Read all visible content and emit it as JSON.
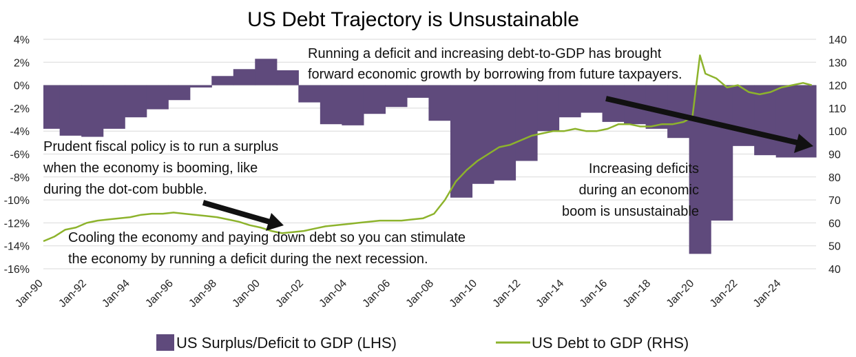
{
  "chart_data": {
    "type": "area",
    "title": "US Debt Trajectory is Unsustainable",
    "xlabel": "",
    "ylabel": "",
    "x_tick_labels": [
      "Jan-90",
      "Jan-92",
      "Jan-94",
      "Jan-96",
      "Jan-98",
      "Jan-00",
      "Jan-02",
      "Jan-04",
      "Jan-06",
      "Jan-08",
      "Jan-10",
      "Jan-12",
      "Jan-14",
      "Jan-16",
      "Jan-18",
      "Jan-20",
      "Jan-22",
      "Jan-24"
    ],
    "y_left_tick_labels": [
      "4%",
      "2%",
      "0%",
      "-2%",
      "-4%",
      "-6%",
      "-8%",
      "-10%",
      "-12%",
      "-14%",
      "-16%"
    ],
    "y_right_tick_labels": [
      "140",
      "130",
      "120",
      "110",
      "100",
      "90",
      "80",
      "70",
      "60",
      "50",
      "40"
    ],
    "y_left_lim": [
      -16,
      4
    ],
    "y_right_lim": [
      40,
      140
    ],
    "x_lim": [
      1990.0,
      2025.6
    ],
    "grid": true,
    "legend_position": "bottom",
    "colors": {
      "deficit": "#5f4a7c",
      "debt": "#8db32c",
      "grid": "#d9d9d9",
      "arrow": "#111111"
    },
    "series": [
      {
        "name": "US Surplus/Deficit to GDP (LHS)",
        "axis": "left",
        "kind": "step-area",
        "x_start": [
          1990.0,
          1990.75,
          1991.75,
          1992.75,
          1993.75,
          1994.75,
          1995.75,
          1996.75,
          1997.75,
          1998.75,
          1999.75,
          2000.75,
          2001.75,
          2002.75,
          2003.75,
          2004.75,
          2005.75,
          2006.75,
          2007.75,
          2008.75,
          2009.75,
          2010.75,
          2011.75,
          2012.75,
          2013.75,
          2014.75,
          2015.75,
          2016.75,
          2017.75,
          2018.75,
          2019.75,
          2020.75,
          2021.75,
          2022.75,
          2023.75,
          2024.75
        ],
        "values": [
          -3.8,
          -4.4,
          -4.5,
          -3.8,
          -2.8,
          -2.1,
          -1.3,
          -0.2,
          0.8,
          1.4,
          2.3,
          1.3,
          -1.5,
          -3.4,
          -3.5,
          -2.5,
          -1.9,
          -1.1,
          -3.1,
          -9.8,
          -8.6,
          -8.3,
          -6.6,
          -4.0,
          -2.8,
          -2.4,
          -3.2,
          -3.4,
          -3.8,
          -4.6,
          -14.7,
          -11.8,
          -5.3,
          -6.1,
          -6.3,
          -6.3
        ]
      },
      {
        "name": "US Debt to GDP (RHS)",
        "axis": "right",
        "kind": "line",
        "x": [
          1990.0,
          1990.5,
          1991.0,
          1991.5,
          1992.0,
          1992.5,
          1993.0,
          1993.5,
          1994.0,
          1994.5,
          1995.0,
          1995.5,
          1996.0,
          1996.5,
          1997.0,
          1997.5,
          1998.0,
          1998.5,
          1999.0,
          1999.5,
          2000.0,
          2000.5,
          2001.0,
          2001.5,
          2002.0,
          2002.5,
          2003.0,
          2003.5,
          2004.0,
          2004.5,
          2005.0,
          2005.5,
          2006.0,
          2006.5,
          2007.0,
          2007.5,
          2008.0,
          2008.5,
          2009.0,
          2009.5,
          2010.0,
          2010.5,
          2011.0,
          2011.5,
          2012.0,
          2012.5,
          2013.0,
          2013.5,
          2014.0,
          2014.5,
          2015.0,
          2015.5,
          2016.0,
          2016.5,
          2017.0,
          2017.5,
          2018.0,
          2018.5,
          2019.0,
          2019.5,
          2019.9,
          2020.25,
          2020.5,
          2021.0,
          2021.5,
          2022.0,
          2022.5,
          2023.0,
          2023.5,
          2024.0,
          2024.5,
          2025.0,
          2025.4
        ],
        "values": [
          52,
          54,
          57,
          58,
          60,
          61,
          61.5,
          62,
          62.5,
          63.5,
          64,
          64,
          64.5,
          64,
          63.5,
          63,
          62.5,
          61.5,
          60.5,
          59,
          58,
          56.5,
          55.5,
          56,
          56.5,
          57.5,
          58.5,
          59,
          59.5,
          60,
          60.5,
          61,
          61,
          61,
          61.5,
          62,
          64,
          70,
          78,
          83,
          87,
          90,
          93,
          94,
          96,
          98,
          99,
          100,
          100,
          101,
          100,
          100,
          101,
          103,
          103,
          102,
          102,
          103,
          103,
          104,
          106,
          133,
          125,
          123,
          119,
          120,
          117,
          116,
          117,
          119,
          120,
          121,
          120
        ]
      }
    ],
    "annotations": {
      "top": [
        "Running a deficit and increasing debt-to-GDP has brought",
        "forward economic growth by borrowing from future taxpayers."
      ],
      "left": [
        "Prudent fiscal policy is to run a surplus",
        "when the economy is booming, like",
        "during the dot-com bubble."
      ],
      "bottom": [
        "Cooling the economy and paying down debt so you can stimulate",
        "the economy by running a deficit during the next recession."
      ],
      "right": [
        "Increasing deficits",
        "during an economic",
        "boom is unsustainable"
      ]
    }
  }
}
